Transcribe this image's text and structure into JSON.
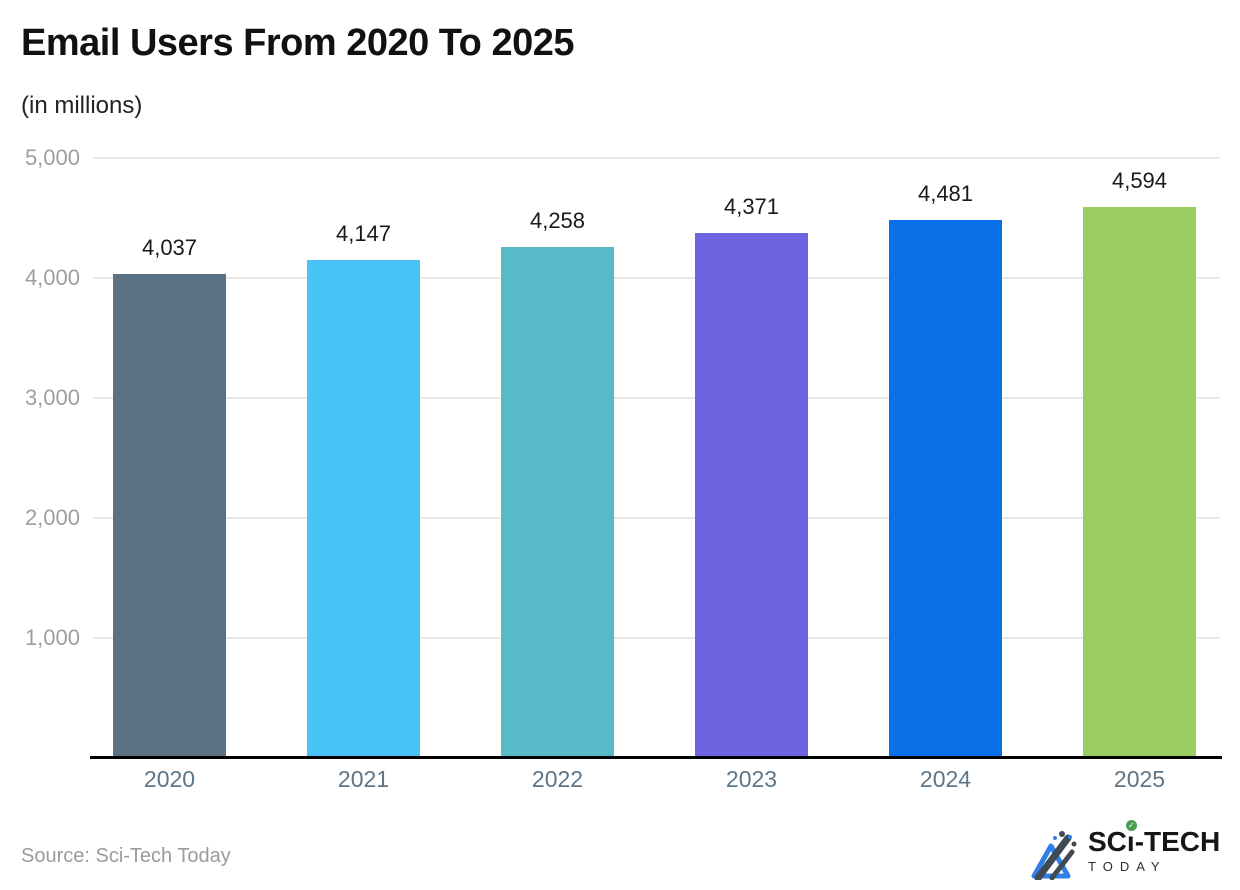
{
  "header": {
    "title": "Email Users From 2020 To 2025",
    "subtitle": "(in millions)"
  },
  "chart_data": {
    "type": "bar",
    "categories": [
      "2020",
      "2021",
      "2022",
      "2023",
      "2024",
      "2025"
    ],
    "values": [
      4037,
      4147,
      4258,
      4371,
      4481,
      4594
    ],
    "value_labels": [
      "4,037",
      "4,147",
      "4,258",
      "4,371",
      "4,481",
      "4,594"
    ],
    "bar_colors": [
      "#5B7285",
      "#49C2F5",
      "#57BAC6",
      "#6C64E0",
      "#0A70E8",
      "#9BCE62"
    ],
    "title": "Email Users From 2020 To 2025",
    "subtitle": "(in millions)",
    "xlabel": "",
    "ylabel": "",
    "ylim": [
      0,
      5000
    ],
    "yticks": [
      1000,
      2000,
      3000,
      4000,
      5000
    ],
    "ytick_labels": [
      "1,000",
      "2,000",
      "3,000",
      "4,000",
      "5,000"
    ],
    "grid": true,
    "legend": false
  },
  "footer": {
    "source": "Source: Sci-Tech Today",
    "logo": {
      "brand_part1": "SC",
      "brand_part2": "ı",
      "brand_part3": "-TECH",
      "brand_check": "✓",
      "brand_sub": "TODAY"
    }
  },
  "colors": {
    "axis_line": "#000000",
    "gridline": "#e9e9e9",
    "ytick_text": "#9e9e9e",
    "xtick_text": "#5d7587",
    "value_label_text": "#1a1a1a",
    "title_text": "#111111",
    "source_text": "#9b9b9b",
    "logo_blue": "#2f7fe8",
    "logo_dark": "#3e4a54",
    "logo_green": "#4a9e53"
  }
}
